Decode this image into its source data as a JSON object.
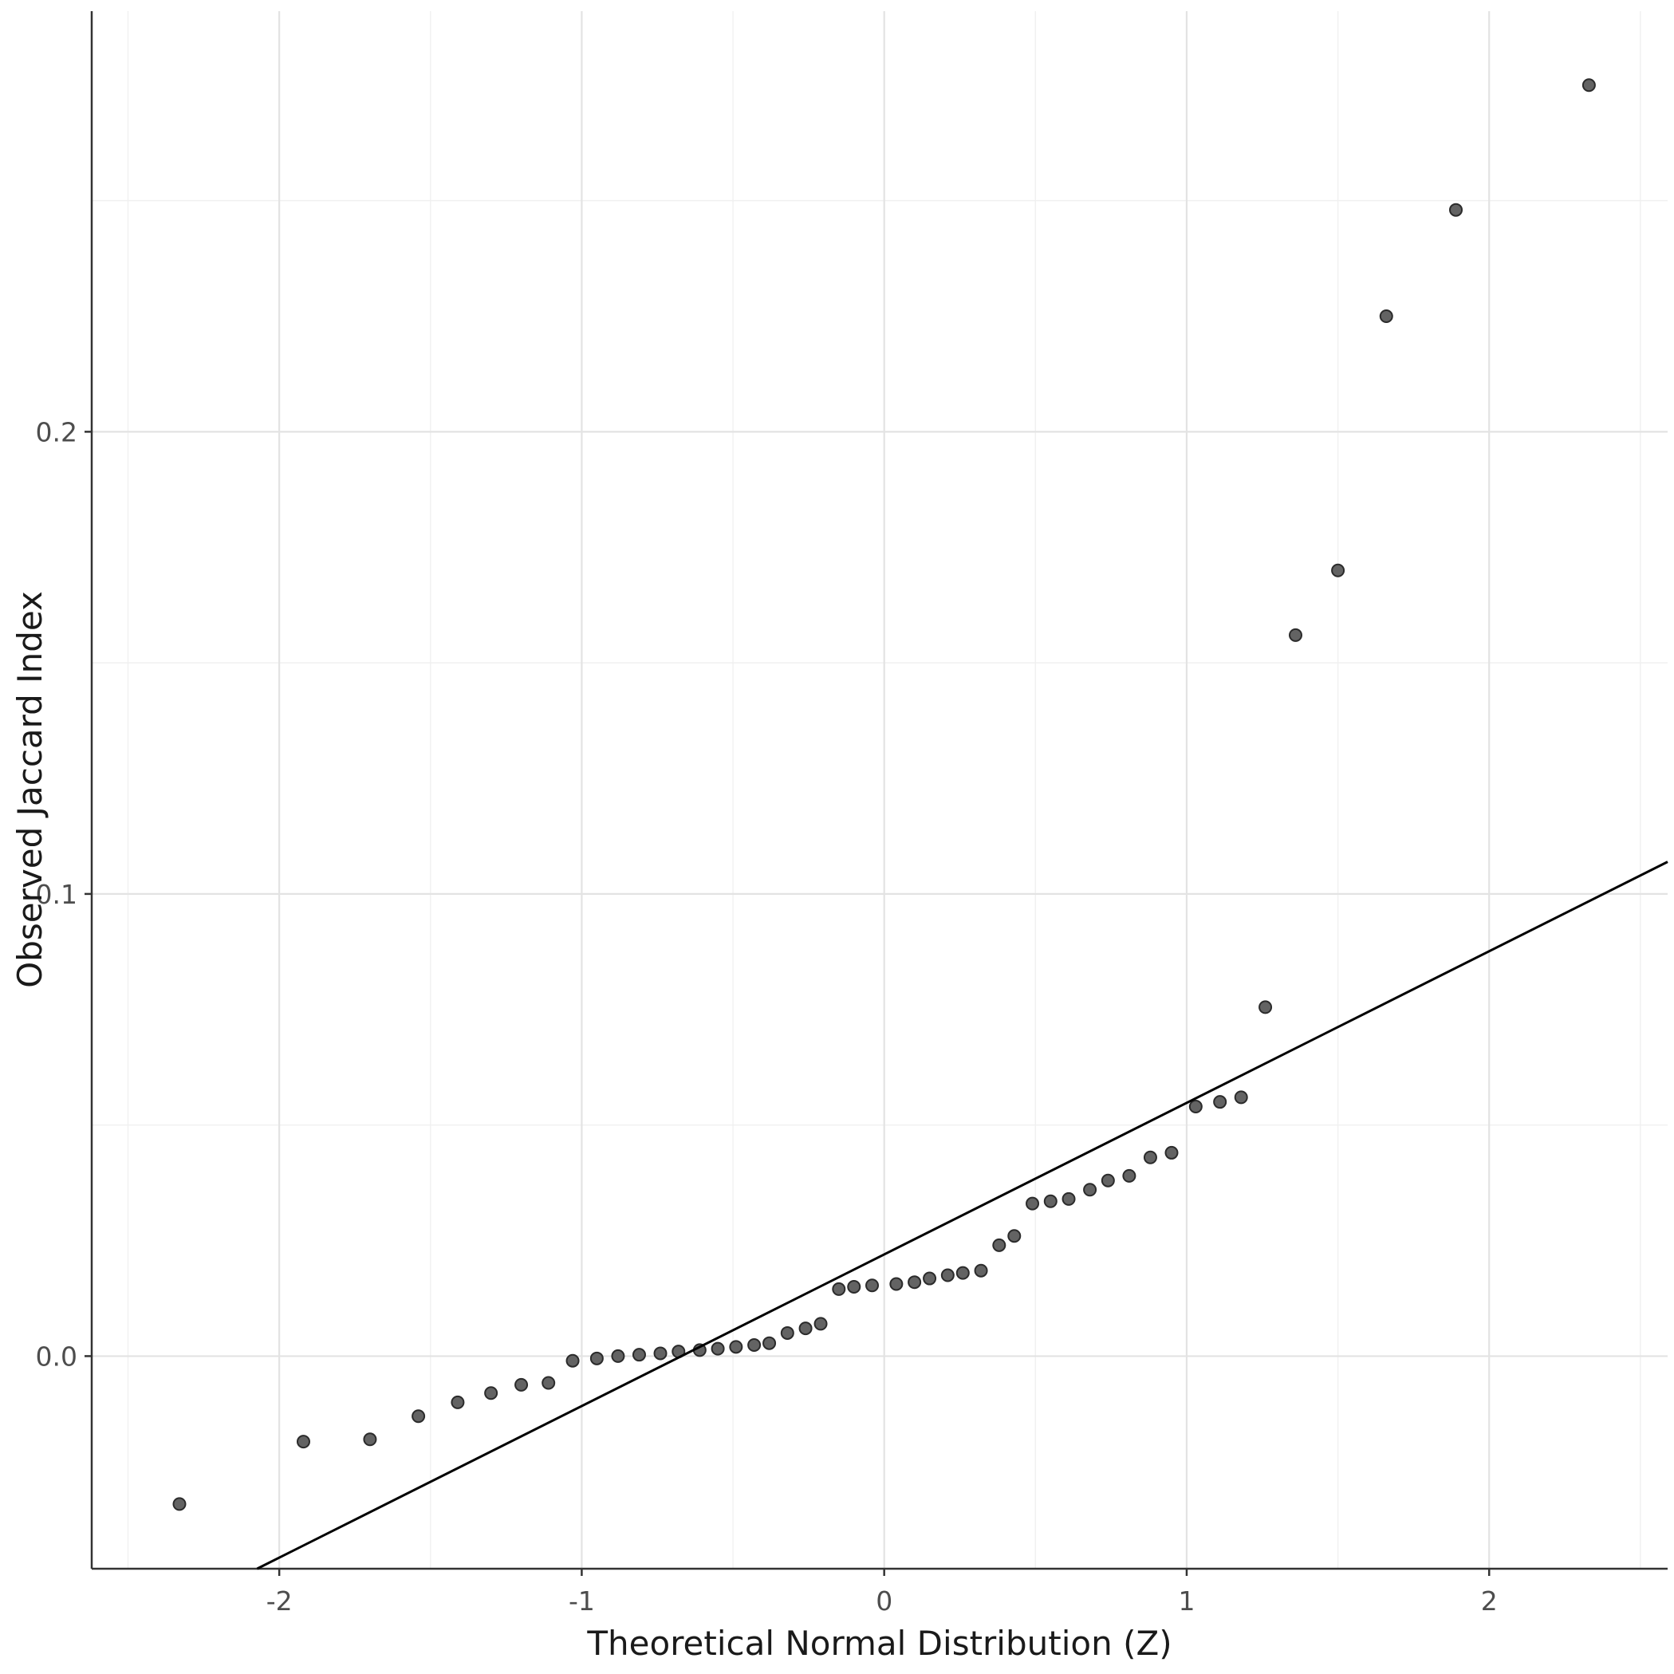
{
  "figure": {
    "background": "#ffffff"
  },
  "chart_data": {
    "type": "scatter",
    "subtype": "qq-plot",
    "xlabel": "Theoretical Normal Distribution (Z)",
    "ylabel": "Observed Jaccard Index",
    "xlim": [
      -2.62,
      2.59
    ],
    "ylim": [
      -0.046,
      0.291
    ],
    "x_major_ticks": [
      -2,
      -1,
      0,
      1,
      2
    ],
    "x_tick_labels": [
      "-2",
      "-1",
      "0",
      "1",
      "2"
    ],
    "x_minor_ticks": [
      -2.5,
      -1.5,
      -0.5,
      0.5,
      1.5,
      2.5
    ],
    "y_major_ticks": [
      0.0,
      0.1,
      0.2
    ],
    "y_tick_labels": [
      "0.0",
      "0.1",
      "0.2"
    ],
    "y_minor_ticks": [
      0.05,
      0.15,
      0.25
    ],
    "grid": true,
    "legend": "none",
    "colors": {
      "point_fill": "#636363",
      "point_stroke": "#2b2b2b",
      "reference_line": "#000000",
      "grid_major": "#e3e3e3",
      "grid_minor": "#f0f0f0",
      "axis_line": "#333333",
      "tick_label": "#4d4d4d"
    },
    "reference_line": {
      "slope": 0.0328,
      "intercept": 0.022
    },
    "points": [
      [
        -2.33,
        -0.032
      ],
      [
        -1.92,
        -0.0185
      ],
      [
        -1.7,
        -0.018
      ],
      [
        -1.54,
        -0.013
      ],
      [
        -1.41,
        -0.01
      ],
      [
        -1.3,
        -0.008
      ],
      [
        -1.2,
        -0.0062
      ],
      [
        -1.11,
        -0.0058
      ],
      [
        -1.03,
        -0.001
      ],
      [
        -0.95,
        -0.0005
      ],
      [
        -0.88,
        0.0
      ],
      [
        -0.81,
        0.0003
      ],
      [
        -0.74,
        0.0006
      ],
      [
        -0.68,
        0.001
      ],
      [
        -0.61,
        0.0013
      ],
      [
        -0.55,
        0.0016
      ],
      [
        -0.49,
        0.002
      ],
      [
        -0.43,
        0.0024
      ],
      [
        -0.38,
        0.0028
      ],
      [
        -0.32,
        0.005
      ],
      [
        -0.26,
        0.006
      ],
      [
        -0.21,
        0.007
      ],
      [
        -0.15,
        0.0145
      ],
      [
        -0.1,
        0.015
      ],
      [
        -0.04,
        0.0153
      ],
      [
        0.04,
        0.0156
      ],
      [
        0.1,
        0.016
      ],
      [
        0.15,
        0.0168
      ],
      [
        0.21,
        0.0175
      ],
      [
        0.26,
        0.018
      ],
      [
        0.32,
        0.0185
      ],
      [
        0.38,
        0.024
      ],
      [
        0.43,
        0.026
      ],
      [
        0.49,
        0.033
      ],
      [
        0.55,
        0.0335
      ],
      [
        0.61,
        0.034
      ],
      [
        0.68,
        0.036
      ],
      [
        0.74,
        0.038
      ],
      [
        0.81,
        0.039
      ],
      [
        0.88,
        0.043
      ],
      [
        0.95,
        0.044
      ],
      [
        1.03,
        0.054
      ],
      [
        1.11,
        0.055
      ],
      [
        1.18,
        0.056
      ],
      [
        1.26,
        0.0755
      ],
      [
        1.36,
        0.156
      ],
      [
        1.5,
        0.17
      ],
      [
        1.66,
        0.225
      ],
      [
        1.89,
        0.248
      ],
      [
        2.33,
        0.275
      ]
    ]
  }
}
